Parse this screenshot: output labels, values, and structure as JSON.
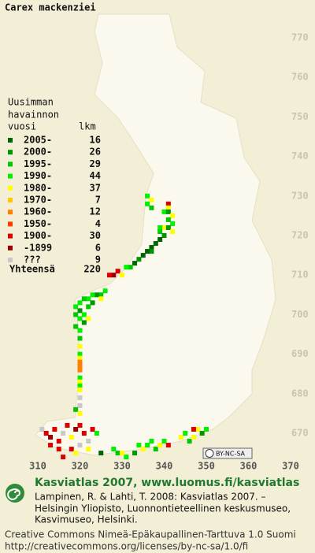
{
  "map": {
    "title": "Carex mackenziei",
    "legend_header": [
      "Uusimman",
      "havainnon",
      "vuosi"
    ],
    "count_header": "lkm",
    "legend": [
      {
        "label": "2005-",
        "count": 16,
        "color": "#006400"
      },
      {
        "label": "2000-",
        "count": 26,
        "color": "#009600"
      },
      {
        "label": "1995-",
        "count": 29,
        "color": "#00c800"
      },
      {
        "label": "1990-",
        "count": 44,
        "color": "#00f000"
      },
      {
        "label": "1980-",
        "count": 37,
        "color": "#ffff00"
      },
      {
        "label": "1970-",
        "count": 7,
        "color": "#ffc800"
      },
      {
        "label": "1960-",
        "count": 12,
        "color": "#ff8000"
      },
      {
        "label": "1950-",
        "count": 4,
        "color": "#ff3c00"
      },
      {
        "label": "1900-",
        "count": 30,
        "color": "#dc0000"
      },
      {
        "label": "-1899",
        "count": 6,
        "color": "#960000"
      },
      {
        "label": "???",
        "count": 9,
        "color": "#c8c8c8"
      }
    ],
    "total_label": "Yhteensä",
    "total": 220,
    "xticks": [
      310,
      320,
      330,
      340,
      350,
      360,
      370
    ],
    "yticks": [
      670,
      680,
      690,
      700,
      710,
      720,
      730,
      740,
      750,
      760,
      770
    ],
    "squares": [
      [
        336,
        730,
        3
      ],
      [
        337,
        729,
        4
      ],
      [
        336,
        728,
        3
      ],
      [
        337,
        727,
        2
      ],
      [
        341,
        728,
        8
      ],
      [
        341,
        727,
        4
      ],
      [
        340,
        726,
        3
      ],
      [
        341,
        726,
        1
      ],
      [
        342,
        725,
        4
      ],
      [
        341,
        724,
        2
      ],
      [
        342,
        723,
        3
      ],
      [
        340,
        722,
        4
      ],
      [
        341,
        722,
        1
      ],
      [
        339,
        722,
        3
      ],
      [
        339,
        721,
        2
      ],
      [
        342,
        721,
        4
      ],
      [
        340,
        720,
        1
      ],
      [
        339,
        719,
        0
      ],
      [
        338,
        718,
        0
      ],
      [
        337,
        717,
        0
      ],
      [
        337,
        716,
        1
      ],
      [
        336,
        716,
        0
      ],
      [
        335,
        715,
        0
      ],
      [
        334,
        714,
        1
      ],
      [
        333,
        713,
        0
      ],
      [
        332,
        712,
        2
      ],
      [
        331,
        712,
        3
      ],
      [
        329,
        711,
        8
      ],
      [
        328,
        710,
        9
      ],
      [
        327,
        710,
        8
      ],
      [
        330,
        710,
        4
      ],
      [
        326,
        706,
        3
      ],
      [
        325,
        705,
        2
      ],
      [
        324,
        705,
        1
      ],
      [
        323,
        705,
        3
      ],
      [
        322,
        704,
        3
      ],
      [
        321,
        704,
        2
      ],
      [
        325,
        704,
        4
      ],
      [
        320,
        703,
        3
      ],
      [
        323,
        703,
        1
      ],
      [
        322,
        702,
        2
      ],
      [
        319,
        702,
        3
      ],
      [
        320,
        701,
        1
      ],
      [
        321,
        700,
        3
      ],
      [
        319,
        700,
        2
      ],
      [
        322,
        699,
        4
      ],
      [
        320,
        699,
        3
      ],
      [
        321,
        698,
        1
      ],
      [
        319,
        697,
        2
      ],
      [
        320,
        696,
        3
      ],
      [
        320,
        694,
        2
      ],
      [
        320,
        692,
        4
      ],
      [
        320,
        690,
        3
      ],
      [
        320,
        689,
        4
      ],
      [
        320,
        688,
        6
      ],
      [
        320,
        687,
        6
      ],
      [
        320,
        686,
        6
      ],
      [
        320,
        684,
        3
      ],
      [
        320,
        683,
        4
      ],
      [
        320,
        682,
        3
      ],
      [
        320,
        681,
        4
      ],
      [
        320,
        679,
        10
      ],
      [
        320,
        677,
        10
      ],
      [
        319,
        676,
        2
      ],
      [
        320,
        675,
        4
      ],
      [
        311,
        671,
        10
      ],
      [
        312,
        670,
        8
      ],
      [
        313,
        669,
        9
      ],
      [
        314,
        671,
        8
      ],
      [
        315,
        668,
        8
      ],
      [
        316,
        670,
        10
      ],
      [
        317,
        672,
        8
      ],
      [
        318,
        669,
        4
      ],
      [
        319,
        671,
        9
      ],
      [
        320,
        672,
        8
      ],
      [
        321,
        670,
        8
      ],
      [
        322,
        668,
        10
      ],
      [
        323,
        671,
        8
      ],
      [
        324,
        670,
        3
      ],
      [
        313,
        667,
        8
      ],
      [
        315,
        666,
        8
      ],
      [
        318,
        666,
        8
      ],
      [
        319,
        665,
        4
      ],
      [
        320,
        667,
        10
      ],
      [
        322,
        666,
        4
      ],
      [
        316,
        664,
        8
      ],
      [
        328,
        666,
        3
      ],
      [
        329,
        665,
        2
      ],
      [
        330,
        665,
        4
      ],
      [
        331,
        664,
        3
      ],
      [
        333,
        665,
        1
      ],
      [
        334,
        667,
        3
      ],
      [
        335,
        666,
        4
      ],
      [
        336,
        667,
        3
      ],
      [
        337,
        668,
        3
      ],
      [
        338,
        666,
        2
      ],
      [
        339,
        667,
        4
      ],
      [
        340,
        668,
        3
      ],
      [
        341,
        667,
        8
      ],
      [
        344,
        669,
        4
      ],
      [
        345,
        670,
        3
      ],
      [
        346,
        668,
        2
      ],
      [
        347,
        669,
        4
      ],
      [
        348,
        671,
        4
      ],
      [
        349,
        670,
        1
      ],
      [
        350,
        671,
        3
      ],
      [
        347,
        671,
        8
      ],
      [
        325,
        665,
        0
      ]
    ],
    "license_badge": "BY-NC-SA"
  },
  "footer": {
    "heading": "Kasviatlas 2007, www.luomus.fi/kasviatlas",
    "citation": [
      "Lampinen, R. & Lahti, T. 2008: Kasviatlas 2007. –",
      "Helsingin Yliopisto, Luonnontieteellinen keskusmuseo,",
      "Kasvimuseo, Helsinki."
    ],
    "license": [
      "Creative Commons Nimeä-Epäkaupallinen-Tarttuva 1.0 Suomi",
      "http://creativecommons.org/licenses/by-nc-sa/1.0/fi"
    ]
  }
}
